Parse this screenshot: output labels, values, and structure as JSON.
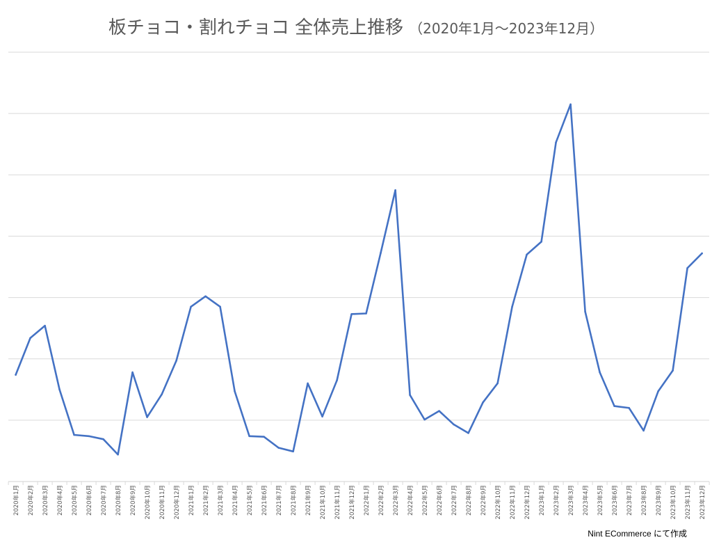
{
  "chart_data": {
    "type": "line",
    "title_main": "板チョコ・割れチョコ 全体売上推移",
    "title_sub": "（2020年1月～2023年12月）",
    "credit": "Nint ECommerce にて作成",
    "line_color": "#4472c4",
    "grid_color": "#d9d9d9",
    "grid": true,
    "y_axis_labels_shown": false,
    "ylim": [
      0,
      700
    ],
    "y_grid_step": 100,
    "categories": [
      "2020年1月",
      "2020年2月",
      "2020年3月",
      "2020年4月",
      "2020年5月",
      "2020年6月",
      "2020年7月",
      "2020年8月",
      "2020年9月",
      "2020年10月",
      "2020年11月",
      "2020年12月",
      "2021年1月",
      "2021年2月",
      "2021年3月",
      "2021年4月",
      "2021年5月",
      "2021年6月",
      "2021年7月",
      "2021年8月",
      "2021年9月",
      "2021年10月",
      "2021年11月",
      "2021年12月",
      "2022年1月",
      "2022年2月",
      "2022年3月",
      "2022年4月",
      "2022年5月",
      "2022年6月",
      "2022年7月",
      "2022年8月",
      "2022年9月",
      "2022年10月",
      "2022年11月",
      "2022年12月",
      "2023年1月",
      "2023年2月",
      "2023年3月",
      "2023年4月",
      "2023年5月",
      "2023年6月",
      "2023年7月",
      "2023年8月",
      "2023年9月",
      "2023年10月",
      "2023年11月",
      "2023年12月"
    ],
    "series": [
      {
        "values": [
          174,
          234,
          254,
          150,
          76,
          74,
          69,
          44,
          178,
          105,
          142,
          197,
          285,
          302,
          285,
          147,
          74,
          73,
          55,
          49,
          160,
          106,
          165,
          273,
          274,
          373,
          475,
          141,
          101,
          115,
          93,
          79,
          129,
          160,
          285,
          370,
          391,
          553,
          615,
          277,
          178,
          123,
          120,
          83,
          147,
          181,
          348,
          372
        ]
      }
    ]
  }
}
